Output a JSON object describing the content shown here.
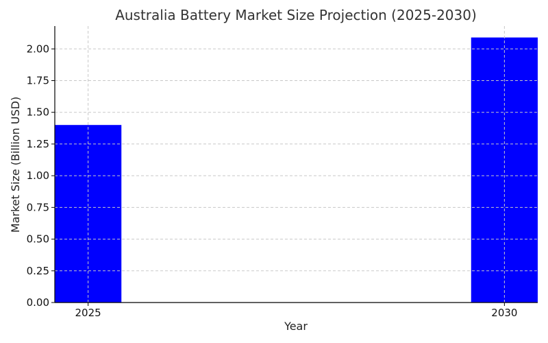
{
  "chart_data": {
    "type": "bar",
    "title": "Australia Battery Market Size Projection (2025-2030)",
    "xlabel": "Year",
    "ylabel": "Market Size (Billion USD)",
    "categories": [
      "2025",
      "2030"
    ],
    "x": [
      2025,
      2030
    ],
    "values": [
      1.4,
      2.09
    ],
    "ylim": [
      0,
      2.18
    ],
    "yticks": [
      0.0,
      0.25,
      0.5,
      0.75,
      1.0,
      1.25,
      1.5,
      1.75,
      2.0
    ],
    "ytick_labels": [
      "0.00",
      "0.25",
      "0.50",
      "0.75",
      "1.00",
      "1.25",
      "1.50",
      "1.75",
      "2.00"
    ],
    "grid": true,
    "bar_color": "#0000ff"
  }
}
